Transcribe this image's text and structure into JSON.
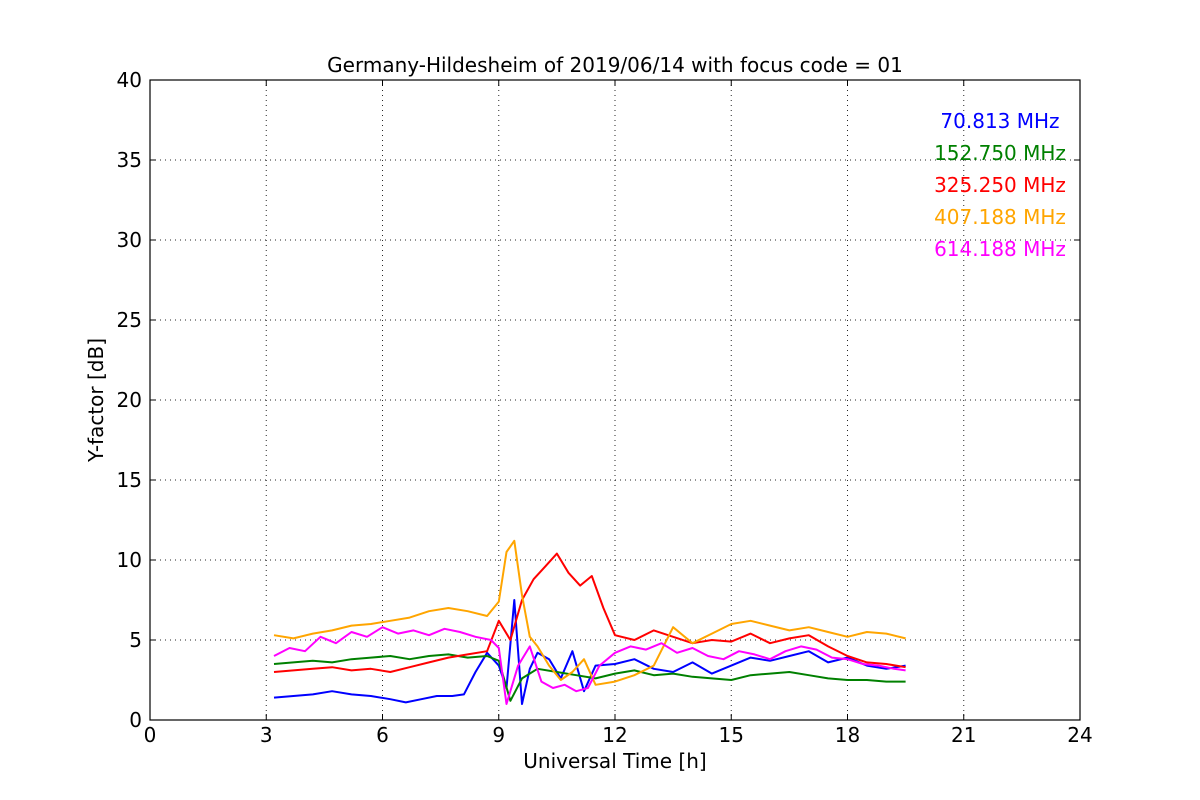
{
  "chart_data": {
    "type": "line",
    "title": "Germany-Hildesheim of 2019/06/14 with focus code = 01",
    "xlabel": "Universal Time [h]",
    "ylabel": "Y-factor [dB]",
    "xlim": [
      0,
      24
    ],
    "ylim": [
      0,
      40
    ],
    "xticks": [
      0,
      3,
      6,
      9,
      12,
      15,
      18,
      21,
      24
    ],
    "yticks": [
      0,
      5,
      10,
      15,
      20,
      25,
      30,
      35,
      40
    ],
    "grid": true,
    "legend_position": "top-right",
    "series": [
      {
        "name": "70.813 MHz",
        "color": "#0000ff",
        "x": [
          3.2,
          3.7,
          4.2,
          4.7,
          5.2,
          5.7,
          6.2,
          6.6,
          7.0,
          7.4,
          7.8,
          8.1,
          8.4,
          8.7,
          9.0,
          9.2,
          9.4,
          9.6,
          9.8,
          10.0,
          10.3,
          10.6,
          10.9,
          11.2,
          11.5,
          12.0,
          12.5,
          13.0,
          13.5,
          14.0,
          14.5,
          15.0,
          15.5,
          16.0,
          16.5,
          17.0,
          17.5,
          18.0,
          18.5,
          19.0,
          19.5
        ],
        "y": [
          1.4,
          1.5,
          1.6,
          1.8,
          1.6,
          1.5,
          1.3,
          1.1,
          1.3,
          1.5,
          1.5,
          1.6,
          3.0,
          4.2,
          3.4,
          2.0,
          7.5,
          1.0,
          3.2,
          4.2,
          3.8,
          2.6,
          4.3,
          1.8,
          3.4,
          3.5,
          3.8,
          3.2,
          3.0,
          3.6,
          2.9,
          3.4,
          3.9,
          3.7,
          4.0,
          4.3,
          3.6,
          3.9,
          3.4,
          3.2,
          3.4
        ]
      },
      {
        "name": "152.750 MHz",
        "color": "#008000",
        "x": [
          3.2,
          3.7,
          4.2,
          4.7,
          5.2,
          5.7,
          6.2,
          6.7,
          7.2,
          7.7,
          8.2,
          8.7,
          9.0,
          9.3,
          9.6,
          10.0,
          10.5,
          11.0,
          11.5,
          12.0,
          12.5,
          13.0,
          13.5,
          14.0,
          14.5,
          15.0,
          15.5,
          16.0,
          16.5,
          17.0,
          17.5,
          18.0,
          18.5,
          19.0,
          19.5
        ],
        "y": [
          3.5,
          3.6,
          3.7,
          3.6,
          3.8,
          3.9,
          4.0,
          3.8,
          4.0,
          4.1,
          3.9,
          4.0,
          3.7,
          1.2,
          2.6,
          3.2,
          3.0,
          2.8,
          2.6,
          2.9,
          3.1,
          2.8,
          2.9,
          2.7,
          2.6,
          2.5,
          2.8,
          2.9,
          3.0,
          2.8,
          2.6,
          2.5,
          2.5,
          2.4,
          2.4
        ]
      },
      {
        "name": "325.250 MHz",
        "color": "#ff0000",
        "x": [
          3.2,
          3.7,
          4.2,
          4.7,
          5.2,
          5.7,
          6.2,
          6.7,
          7.2,
          7.7,
          8.2,
          8.7,
          9.0,
          9.3,
          9.6,
          9.9,
          10.2,
          10.5,
          10.8,
          11.1,
          11.4,
          11.7,
          12.0,
          12.5,
          13.0,
          13.5,
          14.0,
          14.5,
          15.0,
          15.5,
          16.0,
          16.5,
          17.0,
          17.5,
          18.0,
          18.5,
          19.0,
          19.5
        ],
        "y": [
          3.0,
          3.1,
          3.2,
          3.3,
          3.1,
          3.2,
          3.0,
          3.3,
          3.6,
          3.9,
          4.1,
          4.3,
          6.2,
          5.0,
          7.5,
          8.8,
          9.6,
          10.4,
          9.2,
          8.4,
          9.0,
          7.0,
          5.3,
          5.0,
          5.6,
          5.2,
          4.8,
          5.0,
          4.9,
          5.4,
          4.8,
          5.1,
          5.3,
          4.6,
          4.0,
          3.6,
          3.5,
          3.3
        ]
      },
      {
        "name": "407.188 MHz",
        "color": "#ffa500",
        "x": [
          3.2,
          3.7,
          4.2,
          4.7,
          5.2,
          5.7,
          6.2,
          6.7,
          7.2,
          7.7,
          8.2,
          8.7,
          9.0,
          9.2,
          9.4,
          9.6,
          9.8,
          10.0,
          10.3,
          10.6,
          10.9,
          11.2,
          11.5,
          12.0,
          12.5,
          13.0,
          13.5,
          14.0,
          14.5,
          15.0,
          15.5,
          16.0,
          16.5,
          17.0,
          17.5,
          18.0,
          18.5,
          19.0,
          19.5
        ],
        "y": [
          5.3,
          5.1,
          5.4,
          5.6,
          5.9,
          6.0,
          6.2,
          6.4,
          6.8,
          7.0,
          6.8,
          6.5,
          7.4,
          10.5,
          11.2,
          7.8,
          5.2,
          4.6,
          3.4,
          2.5,
          3.0,
          3.8,
          2.2,
          2.4,
          2.8,
          3.4,
          5.8,
          4.8,
          5.4,
          6.0,
          6.2,
          5.9,
          5.6,
          5.8,
          5.5,
          5.2,
          5.5,
          5.4,
          5.1
        ]
      },
      {
        "name": "614.188 MHz",
        "color": "#ff00ff",
        "x": [
          3.2,
          3.6,
          4.0,
          4.4,
          4.8,
          5.2,
          5.6,
          6.0,
          6.4,
          6.8,
          7.2,
          7.6,
          8.0,
          8.4,
          8.8,
          9.0,
          9.2,
          9.5,
          9.8,
          10.1,
          10.4,
          10.7,
          11.0,
          11.3,
          11.6,
          12.0,
          12.4,
          12.8,
          13.2,
          13.6,
          14.0,
          14.4,
          14.8,
          15.2,
          15.6,
          16.0,
          16.4,
          16.8,
          17.2,
          17.6,
          18.0,
          18.4,
          18.8,
          19.2,
          19.5
        ],
        "y": [
          4.0,
          4.5,
          4.3,
          5.2,
          4.8,
          5.5,
          5.2,
          5.8,
          5.4,
          5.6,
          5.3,
          5.7,
          5.5,
          5.2,
          5.0,
          4.5,
          1.0,
          3.4,
          4.6,
          2.4,
          2.0,
          2.2,
          1.8,
          2.0,
          3.4,
          4.2,
          4.6,
          4.4,
          4.8,
          4.2,
          4.5,
          4.0,
          3.8,
          4.3,
          4.1,
          3.8,
          4.3,
          4.6,
          4.4,
          3.9,
          3.8,
          3.5,
          3.4,
          3.2,
          3.1
        ]
      }
    ]
  }
}
